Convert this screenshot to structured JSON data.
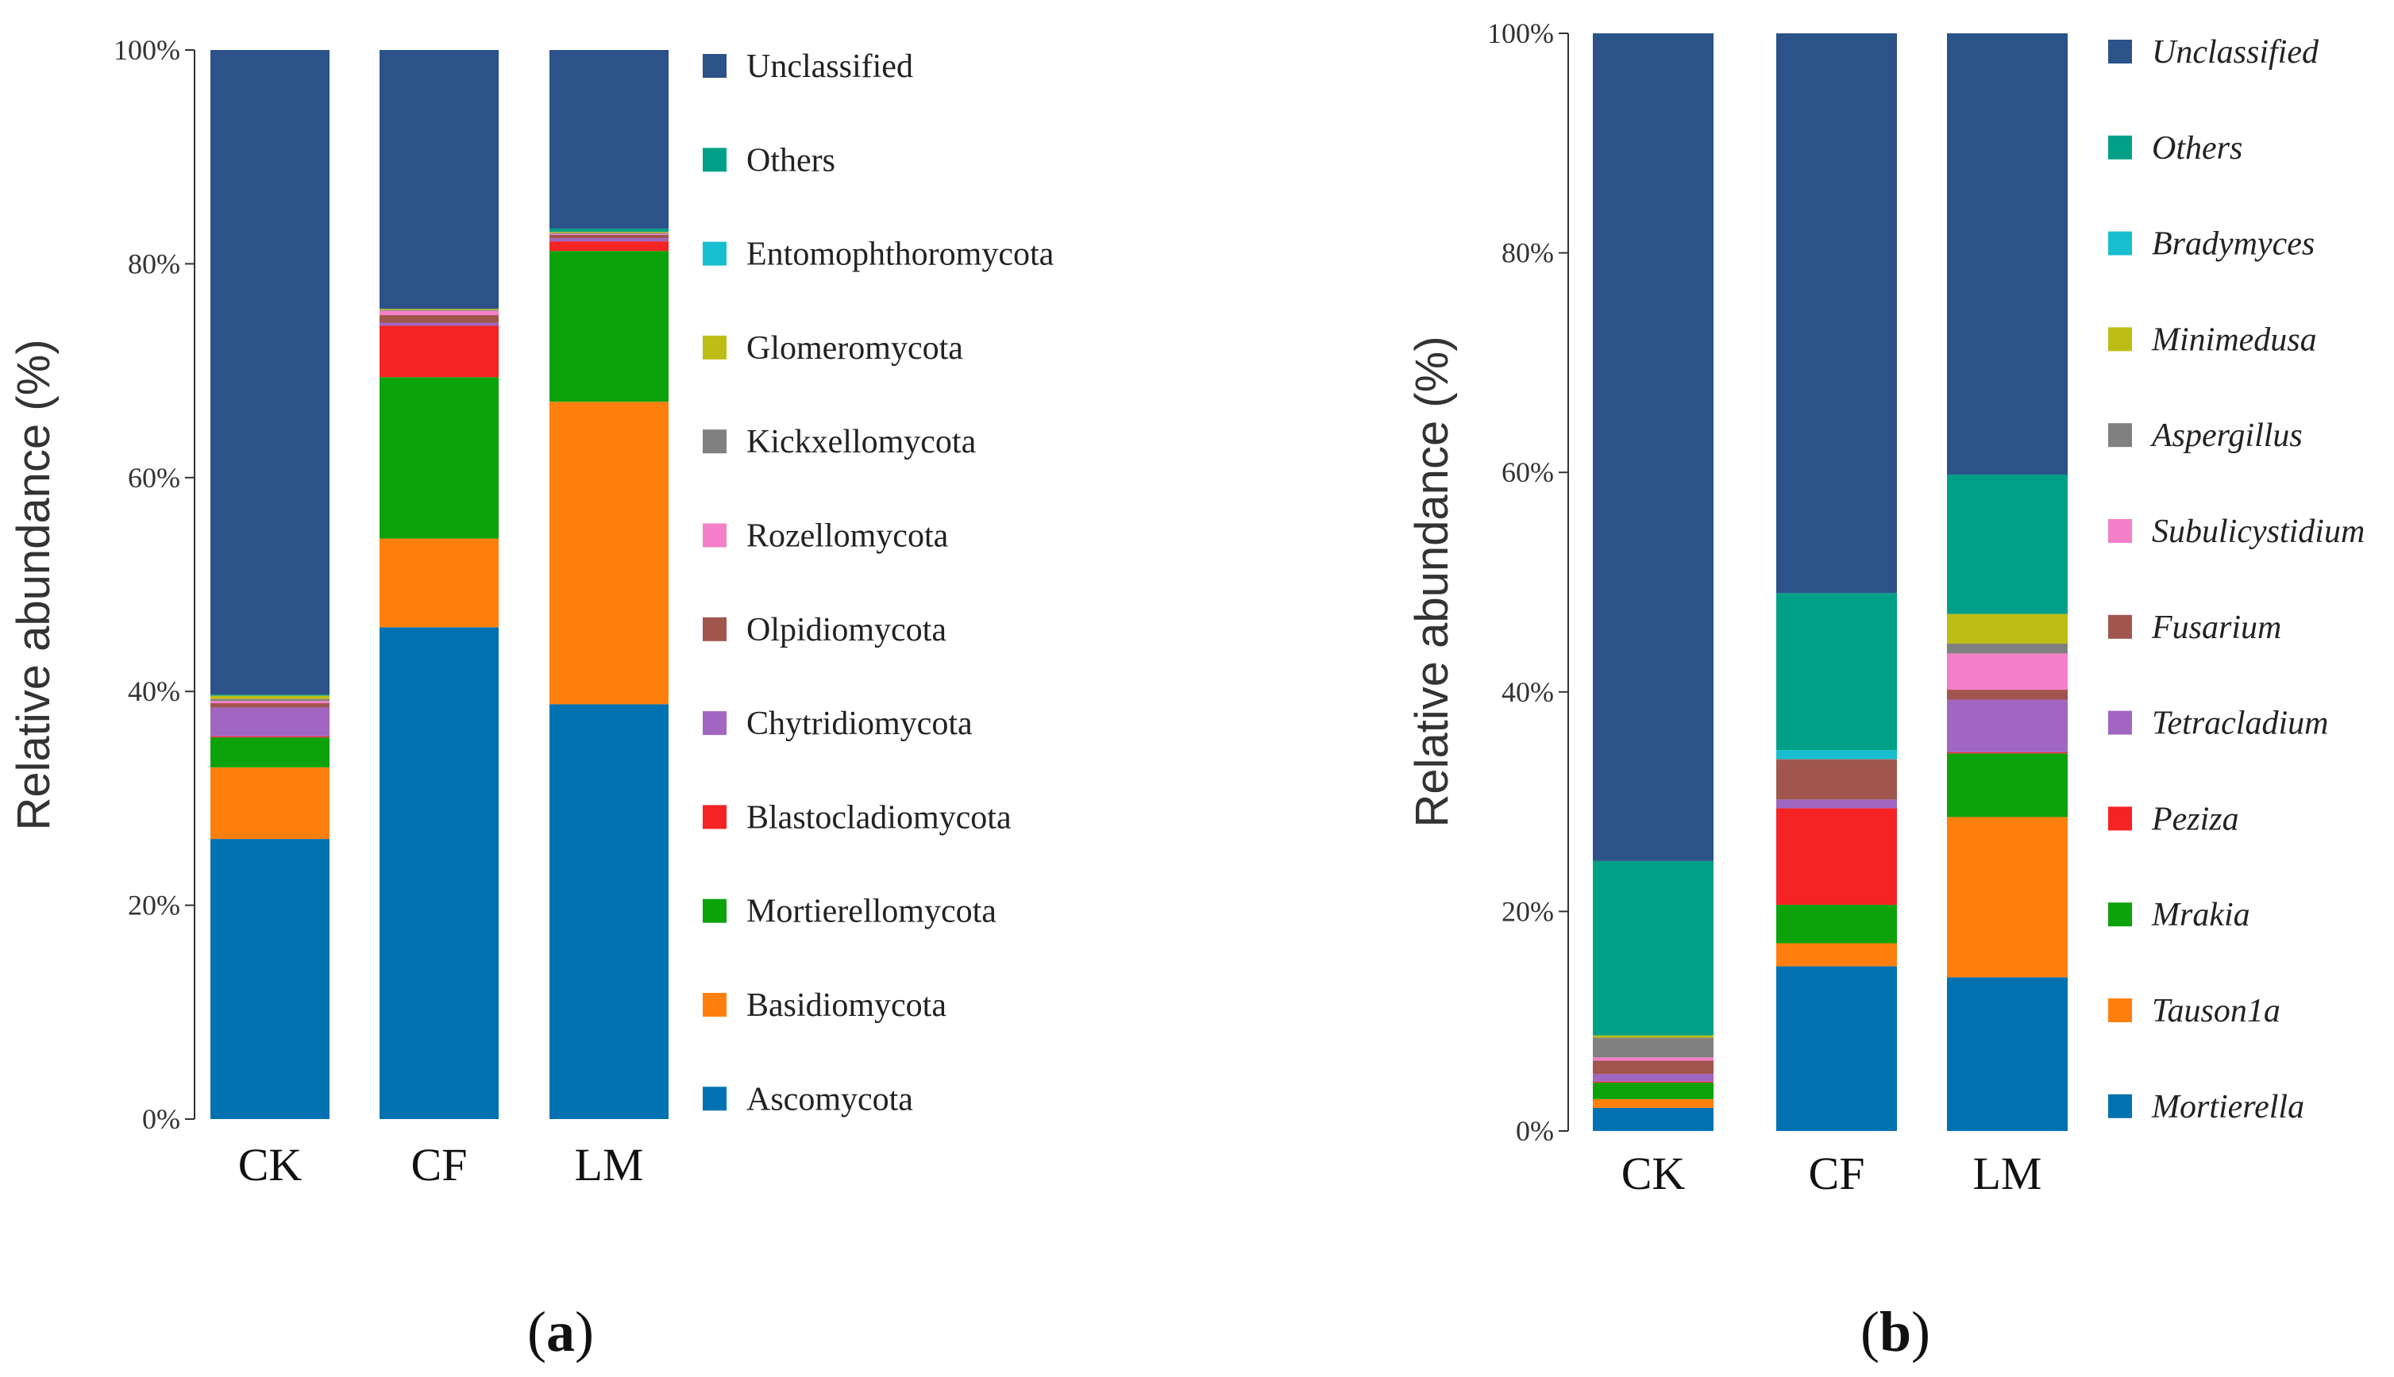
{
  "panels": [
    {
      "panel_label": "a",
      "legend_italic": false,
      "chart_data": {
        "type": "bar",
        "stacked": true,
        "categories": [
          "CK",
          "CF",
          "LM"
        ],
        "ylabel": "Relative abundance (%)",
        "ylim": [
          0,
          100
        ],
        "yticks": [
          "0%",
          "20%",
          "40%",
          "60%",
          "80%",
          "100%"
        ],
        "legend_position": "right",
        "series": [
          {
            "name": "Ascomycota",
            "color": "#0072B2",
            "values": [
              26.2,
              46.0,
              38.8
            ]
          },
          {
            "name": "Basidiomycota",
            "color": "#FF7F0E",
            "values": [
              6.7,
              8.3,
              28.3
            ]
          },
          {
            "name": "Mortierellomycota",
            "color": "#0BA20B",
            "values": [
              2.8,
              15.1,
              14.1
            ]
          },
          {
            "name": "Blastocladiomycota",
            "color": "#F52323",
            "values": [
              0.1,
              4.8,
              0.9
            ]
          },
          {
            "name": "Chytridiomycota",
            "color": "#A066C1",
            "values": [
              2.7,
              0.3,
              0.3
            ]
          },
          {
            "name": "Olpidiomycota",
            "color": "#A0554D",
            "values": [
              0.4,
              0.7,
              0.3
            ]
          },
          {
            "name": "Rozellomycota",
            "color": "#F57FC9",
            "values": [
              0.2,
              0.4,
              0.1
            ]
          },
          {
            "name": "Kickxellomycota",
            "color": "#808080",
            "values": [
              0.2,
              0.1,
              0.1
            ]
          },
          {
            "name": "Glomeromycota",
            "color": "#BDBD15",
            "values": [
              0.3,
              0.1,
              0.1
            ]
          },
          {
            "name": "Entomophthoromycota",
            "color": "#17BECF",
            "values": [
              0.0,
              0.0,
              0.0
            ]
          },
          {
            "name": "Others",
            "color": "#00A088",
            "values": [
              0.1,
              0.0,
              0.3
            ]
          },
          {
            "name": "Unclassified",
            "color": "#2B5289",
            "values": [
              60.3,
              24.2,
              16.7
            ]
          }
        ]
      }
    },
    {
      "panel_label": "b",
      "legend_italic": true,
      "chart_data": {
        "type": "bar",
        "stacked": true,
        "categories": [
          "CK",
          "CF",
          "LM"
        ],
        "ylabel": "Relative abundance (%)",
        "ylim": [
          0,
          100
        ],
        "yticks": [
          "0%",
          "20%",
          "40%",
          "60%",
          "80%",
          "100%"
        ],
        "legend_position": "right",
        "series": [
          {
            "name": "Mortierella",
            "color": "#0072B2",
            "values": [
              2.1,
              15.0,
              14.0
            ]
          },
          {
            "name": "Tauson1a",
            "color": "#FF7F0E",
            "values": [
              0.8,
              2.1,
              14.6
            ]
          },
          {
            "name": "Mrakia",
            "color": "#0BA20B",
            "values": [
              1.5,
              3.5,
              5.8
            ]
          },
          {
            "name": "Peziza",
            "color": "#F52323",
            "values": [
              0.1,
              8.8,
              0.1
            ]
          },
          {
            "name": "Tetracladium",
            "color": "#A066C1",
            "values": [
              0.7,
              0.8,
              4.8
            ]
          },
          {
            "name": "Fusarium",
            "color": "#A0554D",
            "values": [
              1.2,
              3.6,
              0.9
            ]
          },
          {
            "name": "Subulicystidium",
            "color": "#F57FC9",
            "values": [
              0.3,
              0.0,
              3.3
            ]
          },
          {
            "name": "Aspergillus",
            "color": "#808080",
            "values": [
              1.8,
              0.1,
              0.9
            ]
          },
          {
            "name": "Minimedusa",
            "color": "#BDBD15",
            "values": [
              0.2,
              0.0,
              2.7
            ]
          },
          {
            "name": "Bradymyces",
            "color": "#17BECF",
            "values": [
              0.0,
              0.8,
              0.0
            ]
          },
          {
            "name": "Others",
            "color": "#00A088",
            "values": [
              15.9,
              14.3,
              12.7
            ]
          },
          {
            "name": "Unclassified",
            "color": "#2B5289",
            "values": [
              75.4,
              51.0,
              40.2
            ]
          }
        ]
      }
    }
  ]
}
